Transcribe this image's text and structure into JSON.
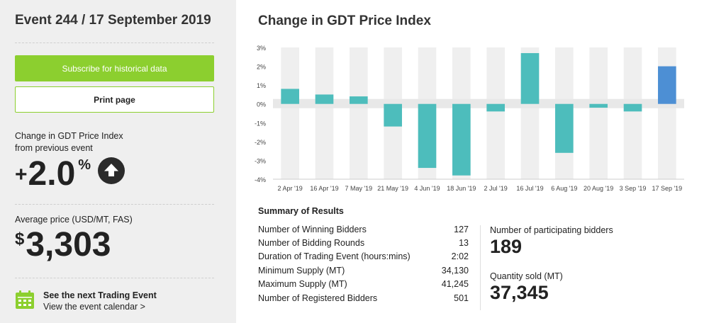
{
  "event": {
    "title": "Event 244 / 17 September 2019"
  },
  "actions": {
    "subscribe_label": "Subscribe for historical data",
    "print_label": "Print page"
  },
  "index_change": {
    "label_line1": "Change in GDT Price Index",
    "label_line2": "from previous event",
    "sign": "+",
    "value": "2.0",
    "unit": "%",
    "direction_icon": "arrow-up-icon"
  },
  "average_price": {
    "label": "Average price (USD/MT, FAS)",
    "currency": "$",
    "value": "3,303"
  },
  "next_event": {
    "icon": "calendar-icon",
    "title": "See the next Trading Event",
    "link": "View the event calendar >"
  },
  "colors": {
    "accent_green": "#8ccf2f",
    "bar_teal": "#4dbdbc",
    "bar_blue": "#4d8fd4",
    "band_gray": "#efefef",
    "panel_gray": "#efefef"
  },
  "chart_data": {
    "type": "bar",
    "title": "Change in GDT Price Index",
    "categories": [
      "2 Apr '19",
      "16 Apr '19",
      "7 May '19",
      "21 May '19",
      "4 Jun '19",
      "18 Jun '19",
      "2 Jul '19",
      "16 Jul '19",
      "6 Aug '19",
      "20 Aug '19",
      "3 Sep '19",
      "17 Sep '19"
    ],
    "values": [
      0.8,
      0.5,
      0.4,
      -1.2,
      -3.4,
      -3.8,
      -0.4,
      2.7,
      -2.6,
      -0.2,
      -0.4,
      2.0
    ],
    "highlight_index": 11,
    "yticks": [
      "3%",
      "2%",
      "1%",
      "0%",
      "-1%",
      "-2%",
      "-3%",
      "-4%"
    ],
    "ylim": [
      -4,
      3
    ],
    "xlabel": "",
    "ylabel": ""
  },
  "summary": {
    "title": "Summary of Results",
    "rows": [
      {
        "label": "Number of Winning Bidders",
        "value": "127"
      },
      {
        "label": "Number of Bidding Rounds",
        "value": "13"
      },
      {
        "label": "Duration of Trading Event (hours:mins)",
        "value": "2:02"
      },
      {
        "label": "Minimum Supply (MT)",
        "value": "34,130"
      },
      {
        "label": "Maximum Supply (MT)",
        "value": "41,245"
      },
      {
        "label": "Number of Registered Bidders",
        "value": "501"
      }
    ],
    "participating_label": "Number of participating bidders",
    "participating_value": "189",
    "quantity_label": "Quantity sold (MT)",
    "quantity_value": "37,345"
  }
}
